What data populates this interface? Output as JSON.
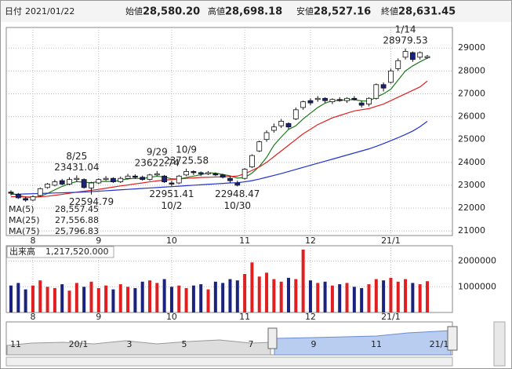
{
  "header": {
    "fields": [
      {
        "label": "日付",
        "value": "2021/01/22",
        "color": "#222"
      },
      {
        "label": "始値",
        "value": "28,580.20",
        "color": "#111"
      },
      {
        "label": "高値",
        "value": "28,698.18",
        "color": "#e0001b"
      },
      {
        "label": "安値",
        "value": "28,527.16",
        "color": "#1a8a1a"
      },
      {
        "label": "終値",
        "value": "28,631.45",
        "color": "#111"
      }
    ]
  },
  "chart_data": [
    {
      "type": "candlestick",
      "categories": [
        null,
        null,
        null,
        "8",
        null,
        null,
        null,
        null,
        null,
        null,
        null,
        null,
        "9",
        null,
        null,
        null,
        null,
        null,
        null,
        null,
        null,
        null,
        "10",
        null,
        null,
        null,
        null,
        null,
        null,
        null,
        null,
        null,
        "11",
        null,
        null,
        null,
        null,
        null,
        null,
        null,
        null,
        "12",
        null,
        null,
        null,
        null,
        null,
        null,
        null,
        null,
        null,
        null,
        "21/1",
        null,
        null,
        null,
        null,
        null
      ],
      "open": [
        22700,
        22600,
        22420,
        22350,
        22550,
        22900,
        23000,
        23200,
        23050,
        23250,
        23250,
        22880,
        23100,
        23250,
        23300,
        23150,
        23300,
        23400,
        23350,
        23250,
        23450,
        23400,
        23100,
        23100,
        23450,
        23600,
        23550,
        23500,
        23500,
        23450,
        23300,
        23100,
        23300,
        23800,
        24500,
        25000,
        25400,
        25600,
        25700,
        25900,
        26400,
        26700,
        26750,
        26800,
        26650,
        26750,
        26700,
        26800,
        26600,
        26550,
        26800,
        27400,
        27500,
        28100,
        28600,
        28800,
        28600,
        28580.2
      ],
      "high": [
        22780,
        22660,
        22500,
        22560,
        22900,
        23100,
        23250,
        23280,
        23350,
        23431.04,
        23300,
        23150,
        23300,
        23400,
        23350,
        23380,
        23500,
        23480,
        23420,
        23500,
        23622.74,
        23450,
        23200,
        23450,
        23725.58,
        23650,
        23600,
        23620,
        23560,
        23500,
        23400,
        23200,
        23750,
        24350,
        24950,
        25400,
        25700,
        25900,
        25750,
        26400,
        26700,
        26800,
        26900,
        26850,
        26800,
        26850,
        26850,
        26900,
        26700,
        26850,
        27450,
        27500,
        28100,
        28550,
        28979.53,
        28850,
        28850,
        28698.18
      ],
      "low": [
        22560,
        22400,
        22280,
        22300,
        22500,
        22850,
        22950,
        23000,
        23000,
        23150,
        22850,
        22594.79,
        23050,
        23200,
        23100,
        23100,
        23250,
        23280,
        23200,
        23200,
        23400,
        23100,
        22951.41,
        23050,
        23400,
        23450,
        23400,
        23450,
        23400,
        23300,
        23100,
        22948.47,
        23250,
        23750,
        24450,
        24900,
        25300,
        25500,
        25450,
        25850,
        26300,
        26500,
        26650,
        26600,
        26550,
        26650,
        26600,
        26700,
        26400,
        26450,
        26750,
        27100,
        27450,
        28000,
        28500,
        28400,
        28500,
        28527.16
      ],
      "close": [
        22650,
        22450,
        22350,
        22500,
        22850,
        23050,
        23150,
        23050,
        23250,
        23300,
        22900,
        23100,
        23250,
        23300,
        23150,
        23300,
        23400,
        23350,
        23250,
        23450,
        23500,
        23150,
        23050,
        23400,
        23600,
        23550,
        23500,
        23550,
        23450,
        23350,
        23200,
        23000,
        23700,
        24300,
        24900,
        25300,
        25550,
        25800,
        25550,
        26300,
        26650,
        26600,
        26800,
        26700,
        26750,
        26700,
        26800,
        26750,
        26500,
        26800,
        27400,
        27250,
        28000,
        28450,
        28850,
        28500,
        28800,
        28631.45
      ],
      "up_color": "#ffffff",
      "down_color": "#1a237e",
      "edge_color": "#111111",
      "ylim": [
        20800,
        29900
      ],
      "yticks": [
        21000,
        22000,
        23000,
        24000,
        25000,
        26000,
        27000,
        28000,
        29000
      ],
      "grid": true,
      "series": [
        {
          "name": "MA(5)",
          "last_label": "28,557.45",
          "color": "#1e7a1e",
          "values": [
            22650,
            22560,
            22480,
            22470,
            22520,
            22640,
            22800,
            22950,
            23070,
            23160,
            23130,
            23110,
            23160,
            23170,
            23160,
            23220,
            23280,
            23300,
            23290,
            23350,
            23390,
            23360,
            23280,
            23270,
            23340,
            23400,
            23460,
            23540,
            23530,
            23470,
            23410,
            23310,
            23340,
            23530,
            23820,
            24220,
            24750,
            25110,
            25440,
            25600,
            25900,
            26150,
            26400,
            26590,
            26700,
            26710,
            26740,
            26740,
            26690,
            26680,
            26850,
            27000,
            27200,
            27600,
            28000,
            28220,
            28400,
            28557.45
          ]
        },
        {
          "name": "MA(25)",
          "last_label": "27,556.88",
          "color": "#e02020",
          "values": [
            22500,
            22500,
            22490,
            22480,
            22490,
            22520,
            22560,
            22600,
            22650,
            22700,
            22740,
            22780,
            22820,
            22870,
            22920,
            22970,
            23010,
            23060,
            23100,
            23150,
            23190,
            23220,
            23250,
            23270,
            23300,
            23320,
            23340,
            23350,
            23360,
            23370,
            23380,
            23400,
            23500,
            23650,
            23800,
            24000,
            24250,
            24500,
            24750,
            25000,
            25250,
            25450,
            25650,
            25800,
            25950,
            26050,
            26150,
            26250,
            26300,
            26350,
            26450,
            26550,
            26700,
            26850,
            27000,
            27150,
            27300,
            27556.88
          ]
        },
        {
          "name": "MA(75)",
          "last_label": "25,796.83",
          "color": "#2233cc",
          "values": [
            22600,
            22610,
            22620,
            22630,
            22640,
            22650,
            22660,
            22670,
            22680,
            22690,
            22700,
            22720,
            22740,
            22760,
            22780,
            22800,
            22820,
            22840,
            22860,
            22880,
            22900,
            22920,
            22940,
            22960,
            22980,
            23000,
            23020,
            23040,
            23060,
            23080,
            23100,
            23110,
            23150,
            23200,
            23270,
            23350,
            23430,
            23510,
            23600,
            23690,
            23780,
            23870,
            23960,
            24050,
            24140,
            24230,
            24320,
            24410,
            24500,
            24590,
            24700,
            24820,
            24950,
            25080,
            25220,
            25370,
            25560,
            25796.83
          ]
        }
      ],
      "annotations": [
        {
          "date": "8/25",
          "value": 23431.04
        },
        {
          "date": "9/29",
          "value": 23622.74
        },
        {
          "date": "10/9",
          "value": 23725.58
        },
        {
          "date": "1/14",
          "value": 28979.53
        },
        {
          "date": "10/2",
          "value": 22951.41
        },
        {
          "date": "10/30",
          "value": 22948.47
        },
        {
          "value": 22594.79
        }
      ]
    },
    {
      "type": "bar",
      "title": "出来高",
      "value_label": "1,217,520.000",
      "up_color": "#e02020",
      "down_color": "#1a237e",
      "values": [
        1050000,
        1150000,
        900000,
        1050000,
        1250000,
        1000000,
        950000,
        1100000,
        850000,
        1150000,
        1000000,
        1200000,
        950000,
        1050000,
        900000,
        1100000,
        1000000,
        950000,
        1200000,
        1250000,
        1150000,
        1300000,
        1000000,
        1050000,
        950000,
        1050000,
        1100000,
        900000,
        1200000,
        1150000,
        1300000,
        1250000,
        1500000,
        1950000,
        1400000,
        1550000,
        1300000,
        1200000,
        1350000,
        1300000,
        2450000,
        1250000,
        1150000,
        1200000,
        1050000,
        1100000,
        1150000,
        1000000,
        950000,
        1100000,
        1300000,
        1250000,
        1350000,
        1200000,
        1300000,
        1150000,
        1100000,
        1217520
      ],
      "ylim": [
        0,
        2600000
      ],
      "yticks": [
        1000000,
        2000000
      ],
      "grid": true
    }
  ],
  "navigator": {
    "labels": [
      "11",
      "20/1",
      "3",
      "5",
      "7",
      "9",
      "11",
      "21/1"
    ]
  }
}
